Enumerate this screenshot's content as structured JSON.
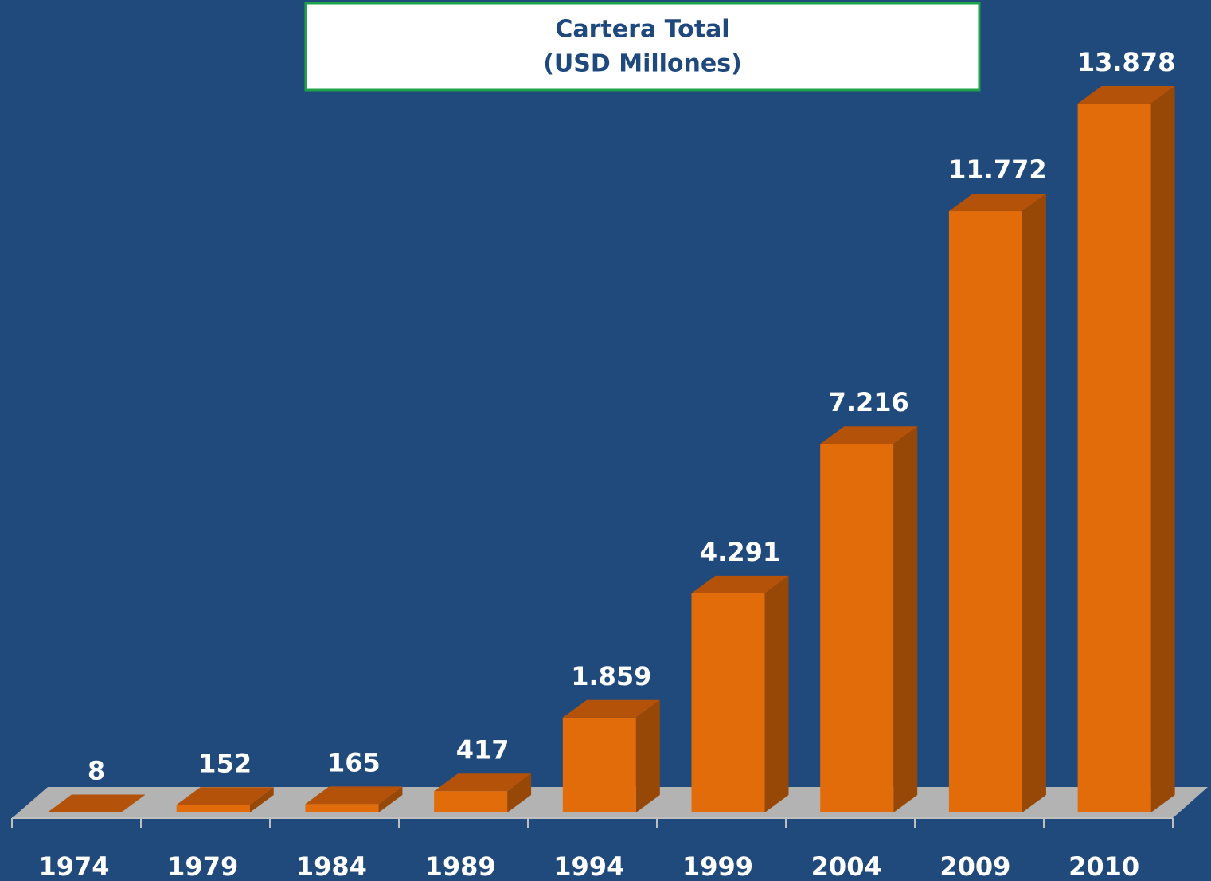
{
  "chart_data": {
    "type": "bar3d",
    "title": "Cartera Total",
    "subtitle": "(USD Millones)",
    "categories": [
      "1974",
      "1979",
      "1984",
      "1989",
      "1994",
      "1999",
      "2004",
      "2009",
      "2010"
    ],
    "values": [
      8,
      152,
      165,
      417,
      1859,
      4291,
      7216,
      11772,
      13878
    ],
    "value_labels": [
      "8",
      "152",
      "165",
      "417",
      "1.859",
      "4.291",
      "7.216",
      "11.772",
      "13.878"
    ],
    "color": "#e36c0a"
  }
}
